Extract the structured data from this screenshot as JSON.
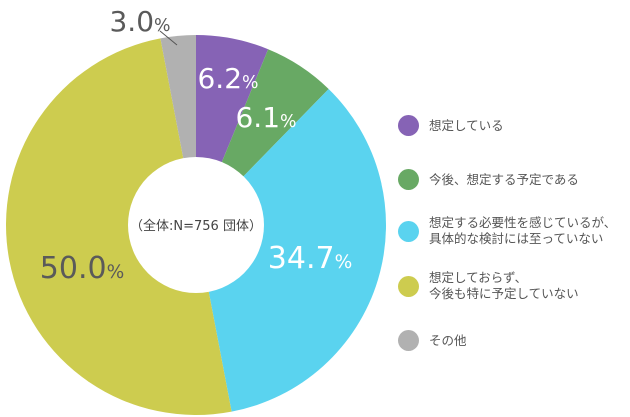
{
  "chart_data": {
    "type": "pie",
    "variant": "donut",
    "center_label": "（全体:N=756 団体）",
    "unit": "%",
    "slices": [
      {
        "label": "想定している",
        "value": 6.2,
        "display": "6.2",
        "color": "#8663b5",
        "text_color": "#ffffff"
      },
      {
        "label": "今後、想定する予定である",
        "value": 6.1,
        "display": "6.1",
        "color": "#68a964",
        "text_color": "#ffffff"
      },
      {
        "label": "想定する必要性を感じているが、\n具体的な検討には至っていない",
        "value": 34.7,
        "display": "34.7",
        "color": "#5ad3ef",
        "text_color": "#ffffff"
      },
      {
        "label": "想定しておらず、\n今後も特に予定していない",
        "value": 50.0,
        "display": "50.0",
        "color": "#cdcc4f",
        "text_color": "#5a5a5a"
      },
      {
        "label": "その他",
        "value": 3.0,
        "display": "3.0",
        "color": "#b1b1b1",
        "text_color": "#5a5a5a"
      }
    ],
    "legend_position": "right"
  }
}
